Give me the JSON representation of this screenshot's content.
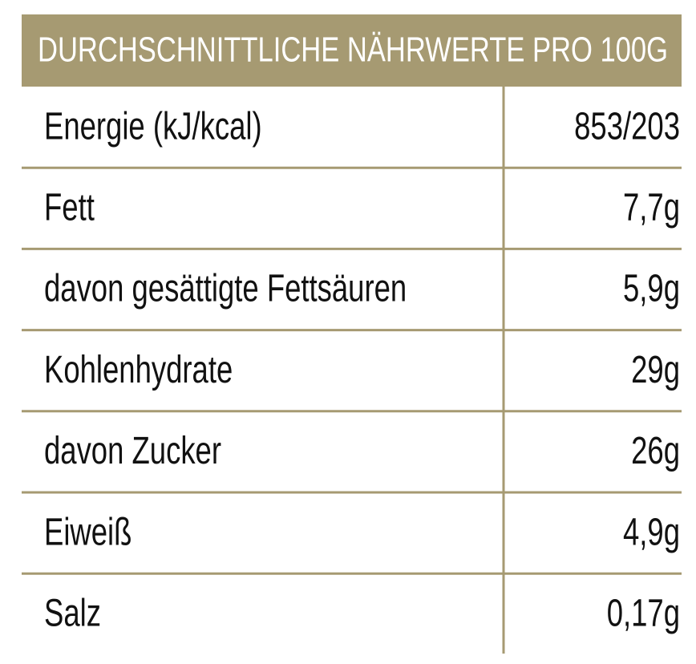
{
  "header": {
    "title": "DURCHSCHNITTLICHE NÄHRWERTE PRO 100G"
  },
  "table": {
    "rows": [
      [
        "Energie (kJ/kcal)",
        "853/203"
      ],
      [
        "Fett",
        "7,7g"
      ],
      [
        "davon gesättigte Fettsäuren",
        "5,9g"
      ],
      [
        "Kohlenhydrate",
        "29g"
      ],
      [
        "davon Zucker",
        "26g"
      ],
      [
        "Eiweiß",
        "4,9g"
      ],
      [
        "Salz",
        "0,17g"
      ]
    ]
  }
}
